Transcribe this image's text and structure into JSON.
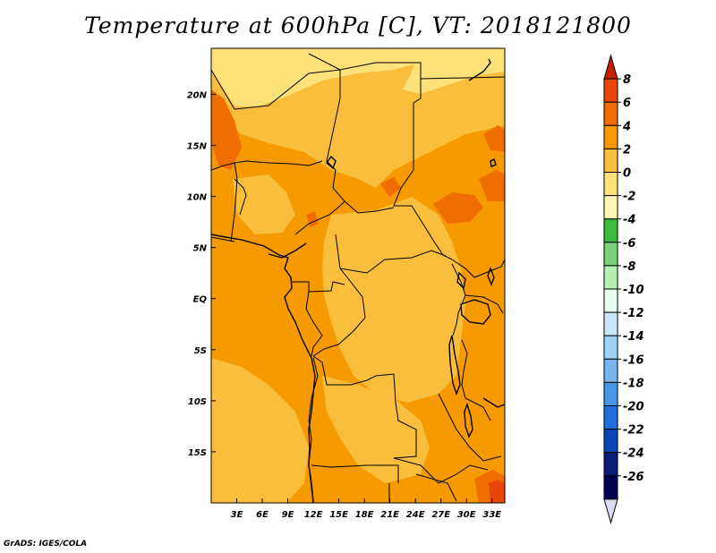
{
  "title": "Temperature at 600hPa [C], VT: 2018121800",
  "credit": "GrADS: IGES/COLA",
  "map": {
    "lon_range": [
      0,
      34.5
    ],
    "lat_range": [
      -20,
      24.5
    ],
    "x_ticks": [
      "3E",
      "6E",
      "9E",
      "12E",
      "15E",
      "18E",
      "21E",
      "24E",
      "27E",
      "30E",
      "33E"
    ],
    "x_tick_values": [
      3,
      6,
      9,
      12,
      15,
      18,
      21,
      24,
      27,
      30,
      33
    ],
    "y_ticks": [
      "20N",
      "15N",
      "10N",
      "5N",
      "EQ",
      "5S",
      "10S",
      "15S"
    ],
    "y_tick_values": [
      20,
      15,
      10,
      5,
      0,
      -5,
      -10,
      -15
    ]
  },
  "colorbar": {
    "labels": [
      "8",
      "6",
      "4",
      "2",
      "0",
      "-2",
      "-4",
      "-6",
      "-8",
      "-10",
      "-12",
      "-14",
      "-16",
      "-18",
      "-20",
      "-22",
      "-24",
      "-26"
    ],
    "colors": [
      "#c81e00",
      "#e8460a",
      "#f06e00",
      "#f59a00",
      "#f9bf3c",
      "#fde27a",
      "#fdf6b4",
      "#3cbc3c",
      "#78d27a",
      "#b4f0b4",
      "#e6fff0",
      "#c8e6fa",
      "#a0d2f5",
      "#78b4f0",
      "#4696e6",
      "#1e6edc",
      "#0a46b4",
      "#0a1e78",
      "#000050",
      "#dcdcf0"
    ]
  }
}
